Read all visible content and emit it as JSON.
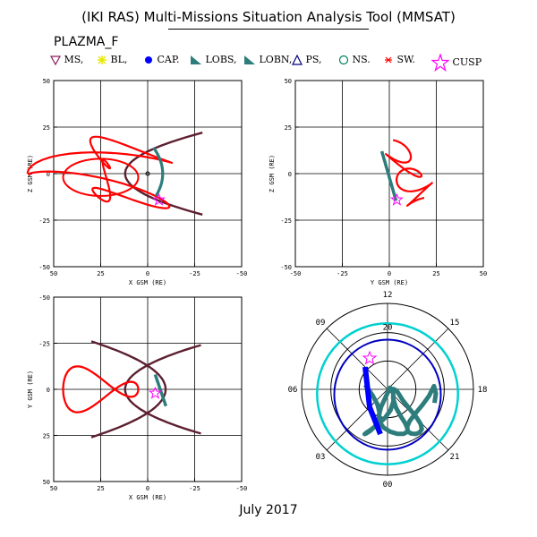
{
  "title": "(IKI RAS) Multi-Missions Situation Analysis Tool (MMSAT)",
  "plot_name": "PLAZMA_F",
  "footer": "July 2017",
  "legend": [
    {
      "label": "MS,",
      "icon": "triangle-down",
      "color": "#8b1a5a"
    },
    {
      "label": "BL,",
      "icon": "asterisk",
      "color": "#e8e800"
    },
    {
      "label": "CAP.",
      "icon": "filled-circle",
      "color": "#0000ff"
    },
    {
      "label": "LOBS,",
      "icon": "filled-triangle",
      "color": "#2e7d7d"
    },
    {
      "label": "LOBN,",
      "icon": "filled-triangle",
      "color": "#2e7d7d"
    },
    {
      "label": "PS,",
      "icon": "triangle-up-outline",
      "color": "#000080"
    },
    {
      "label": "NS.",
      "icon": "circle-outline",
      "color": "#008060"
    },
    {
      "label": "SW.",
      "icon": "asterisk-small",
      "color": "#ff0000"
    },
    {
      "label": "CUSP",
      "icon": "star-outline",
      "color": "#ff00ff"
    }
  ],
  "colors": {
    "orbit": "#ff0000",
    "model_boundary": "#5c2030",
    "lobe": "#2e7d7d",
    "cap": "#0000ff",
    "ring_outer": "#00d0d0",
    "ring_inner": "#0000c0"
  },
  "chart_data": [
    {
      "type": "scatter",
      "xlabel": "X GSM (RE)",
      "ylabel": "Z GSM (RE)",
      "xlim": [
        50,
        -50
      ],
      "ylim": [
        -50,
        50
      ],
      "xticks": [
        "50",
        "25",
        "0",
        "-25",
        "-50"
      ],
      "yticks": [
        "50",
        "25",
        "0",
        "-25",
        "-50"
      ],
      "grid": true
    },
    {
      "type": "scatter",
      "xlabel": "Y GSM (RE)",
      "ylabel": "Z GSM (RE)",
      "xlim": [
        -50,
        50
      ],
      "ylim": [
        -50,
        50
      ],
      "xticks": [
        "-50",
        "-25",
        "0",
        "25",
        "50"
      ],
      "yticks": [
        "50",
        "25",
        "0",
        "-25",
        "-50"
      ],
      "grid": true
    },
    {
      "type": "scatter",
      "xlabel": "X GSM (RE)",
      "ylabel": "Y GSM (RE)",
      "xlim": [
        50,
        -50
      ],
      "ylim": [
        50,
        -50
      ],
      "xticks": [
        "50",
        "25",
        "0",
        "-25",
        "-50"
      ],
      "yticks": [
        "-50",
        "-25",
        "0",
        "25",
        "50"
      ],
      "grid": true
    },
    {
      "type": "polar",
      "angle_labels": [
        "12",
        "09",
        "06",
        "03",
        "00",
        "21",
        "18",
        "15"
      ],
      "radius_labels": [
        "20"
      ]
    }
  ]
}
